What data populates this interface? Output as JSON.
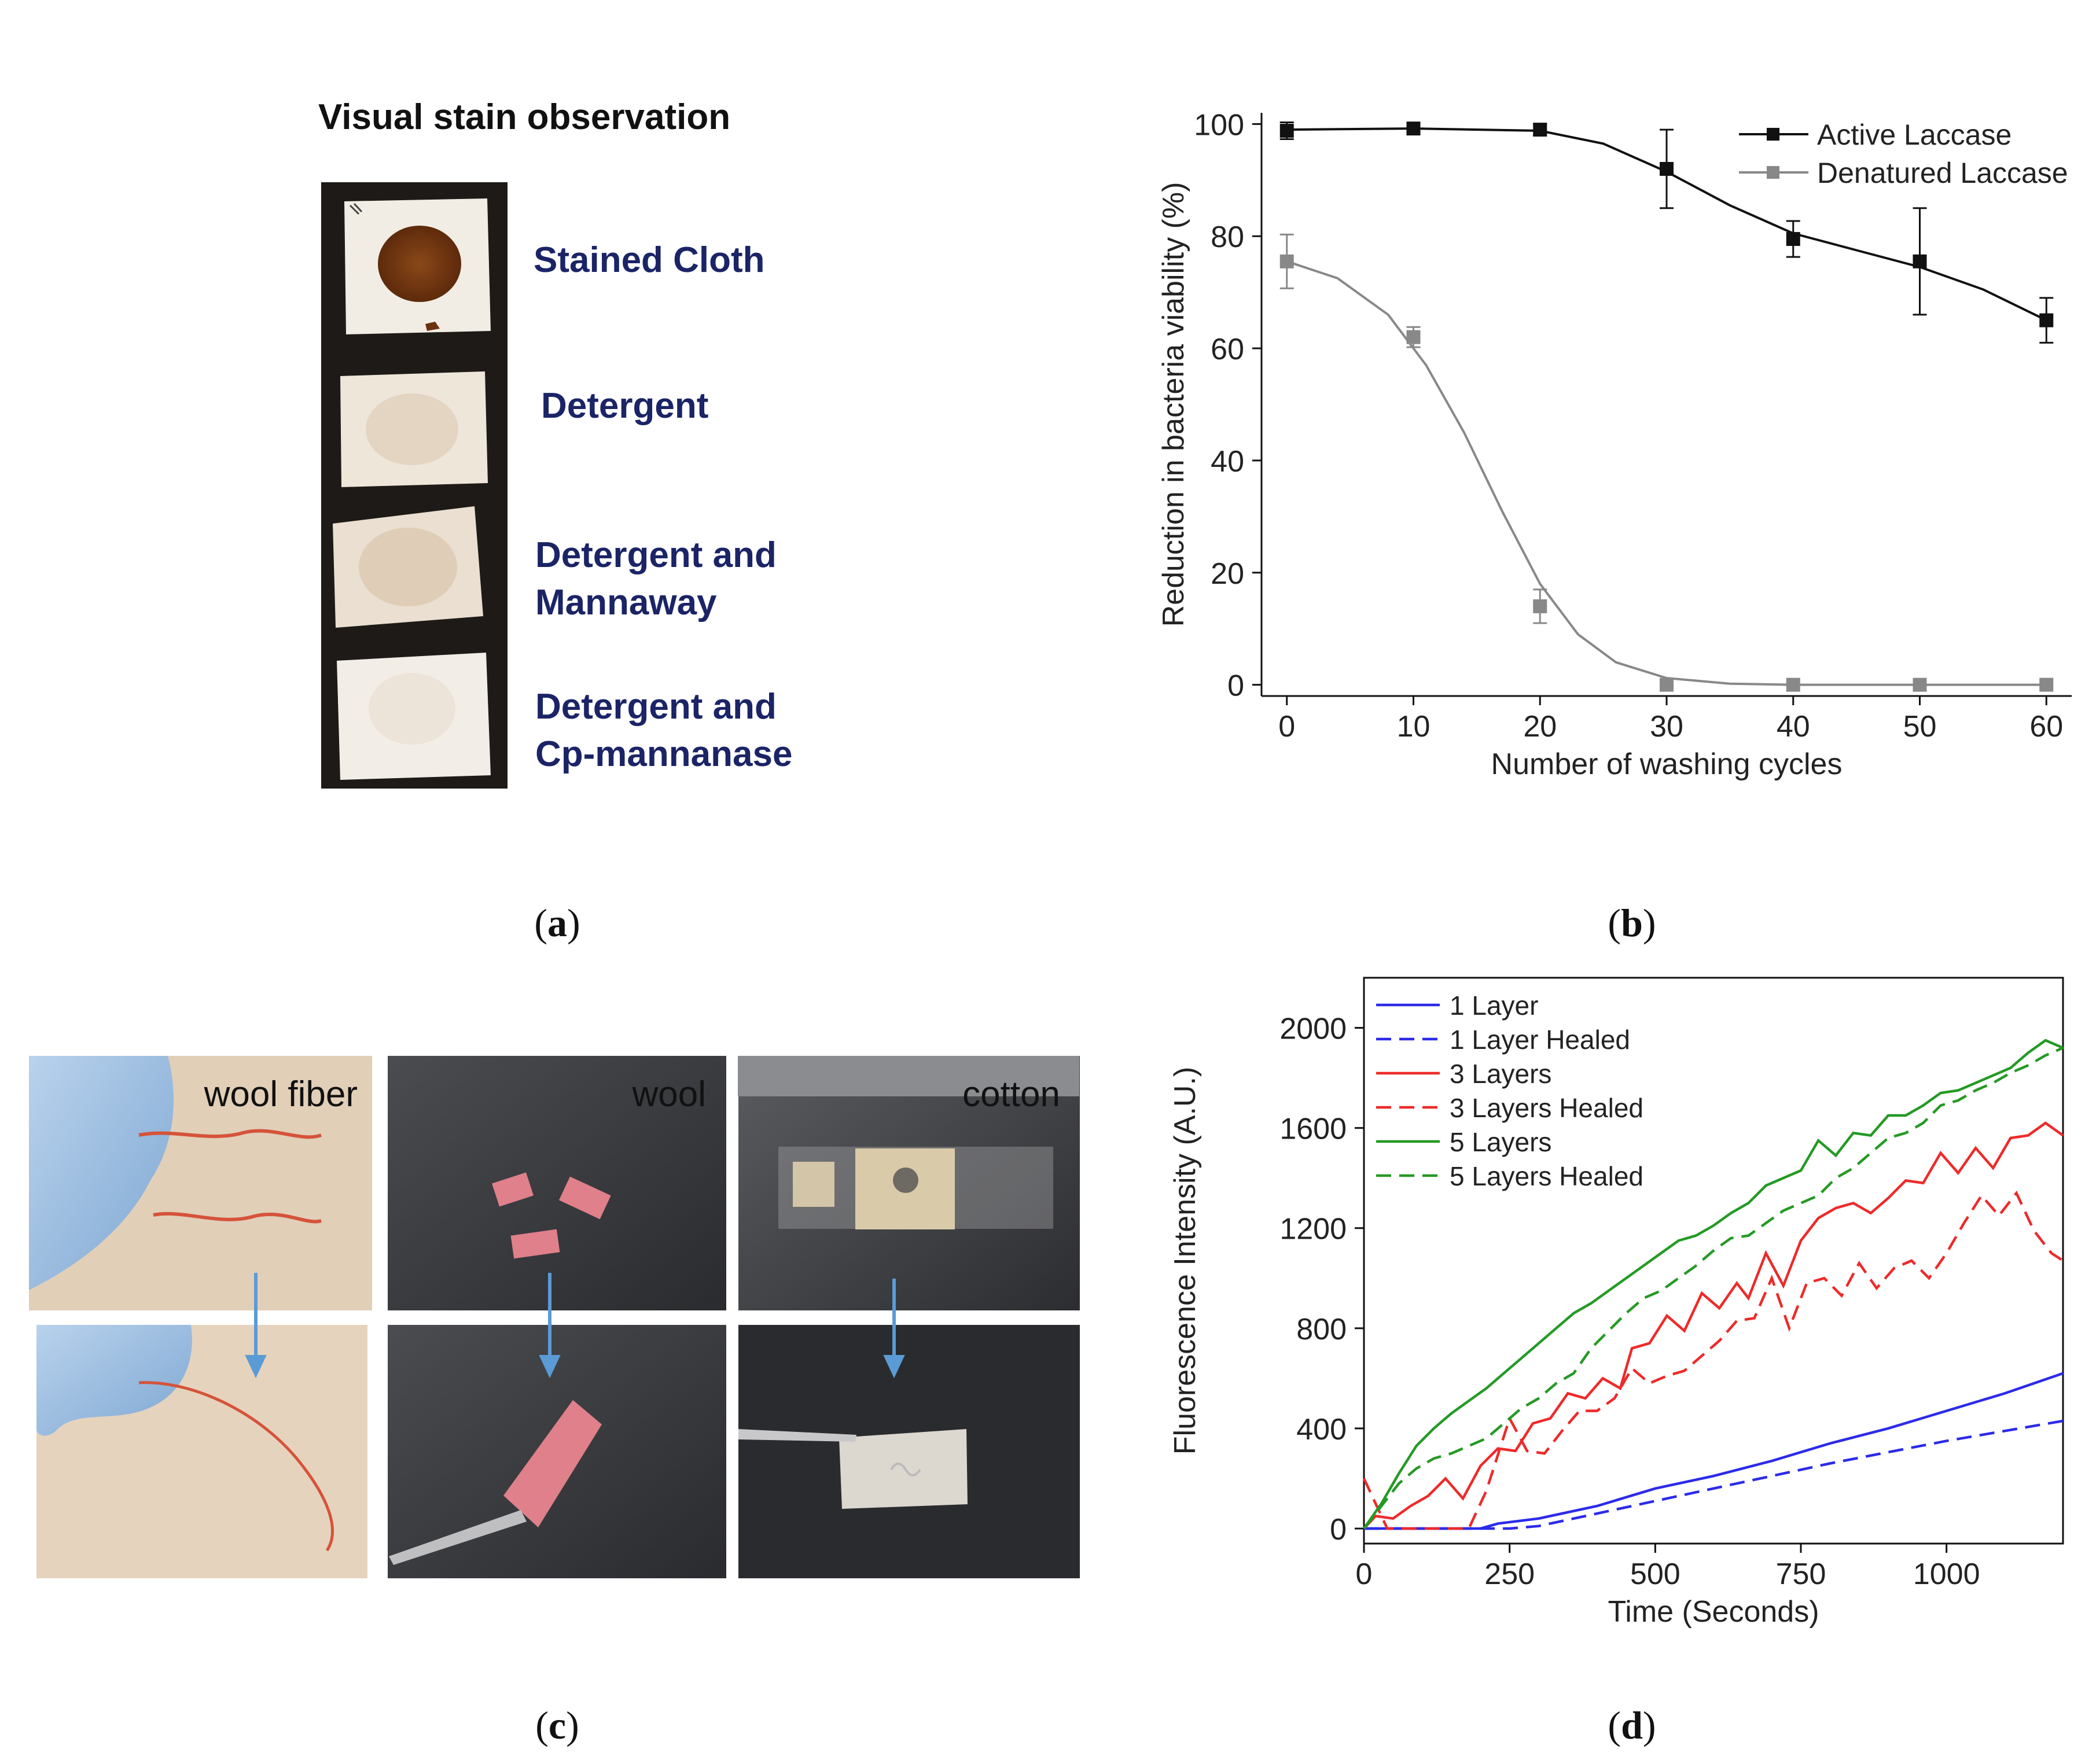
{
  "panels": {
    "a": {
      "label_open": "(",
      "label_letter": "a",
      "label_close": ")",
      "title": "Visual stain observation",
      "samples": [
        {
          "lines": [
            "Stained Cloth"
          ]
        },
        {
          "lines": [
            "Detergent"
          ]
        },
        {
          "lines": [
            "Detergent and",
            "Mannaway"
          ]
        },
        {
          "lines": [
            "Detergent and",
            "Cp-mannanase"
          ]
        }
      ],
      "colors": {
        "text": "#1a2466",
        "stain": "#7a3a14",
        "cloth": "#f1ede4",
        "washed": "#e9dccb",
        "background": "#1d1a17"
      }
    },
    "b": {
      "label_open": "(",
      "label_letter": "b",
      "label_close": ")"
    },
    "c": {
      "label_open": "(",
      "label_letter": "c",
      "label_close": ")",
      "photos": [
        {
          "caption": "wool fiber"
        },
        {
          "caption": "wool"
        },
        {
          "caption": "cotton"
        }
      ],
      "colors": {
        "arrow": "#5b9bd5",
        "fiber": "#d5533a",
        "wool": "#e0808a"
      }
    },
    "d": {
      "label_open": "(",
      "label_letter": "d",
      "label_close": ")"
    }
  },
  "chart_data": [
    {
      "panel": "b",
      "type": "line",
      "title": "",
      "xlabel": "Number of washing cycles",
      "ylabel": "Reduction in bacteria viability (%)",
      "xlim": [
        -2,
        62
      ],
      "ylim": [
        -2,
        102
      ],
      "xticks": [
        0,
        10,
        20,
        30,
        40,
        50,
        60
      ],
      "yticks": [
        0,
        20,
        40,
        60,
        80,
        100
      ],
      "grid": false,
      "legend_position": "top-right",
      "series": [
        {
          "name": "Active Laccase",
          "color": "#111111",
          "marker": "square",
          "x": [
            0,
            10,
            20,
            30,
            40,
            50,
            60
          ],
          "y": [
            98.8,
            99.2,
            99.0,
            92.0,
            79.5,
            75.5,
            65.0
          ],
          "error": [
            1.5,
            0.8,
            1.0,
            7.0,
            3.2,
            9.5,
            4.0
          ],
          "fit": [
            [
              0,
              99
            ],
            [
              10,
              99.2
            ],
            [
              20,
              98.8
            ],
            [
              25,
              96.5
            ],
            [
              30,
              91.5
            ],
            [
              35,
              85.5
            ],
            [
              40,
              80.5
            ],
            [
              45,
              77.5
            ],
            [
              50,
              74.5
            ],
            [
              55,
              70.5
            ],
            [
              60,
              65
            ]
          ]
        },
        {
          "name": "Denatured Laccase",
          "color": "#888888",
          "marker": "square",
          "x": [
            0,
            10,
            20,
            30,
            40,
            50,
            60
          ],
          "y": [
            75.5,
            62.0,
            14.0,
            0.0,
            0.0,
            0.0,
            0.0
          ],
          "error": [
            4.8,
            1.8,
            3.0,
            0.0,
            0.0,
            0.0,
            0.0
          ],
          "fit": [
            [
              0,
              75.5
            ],
            [
              4,
              72.5
            ],
            [
              8,
              66
            ],
            [
              11,
              57
            ],
            [
              14,
              45
            ],
            [
              17,
              31
            ],
            [
              20,
              18
            ],
            [
              23,
              9
            ],
            [
              26,
              4
            ],
            [
              30,
              1.2
            ],
            [
              35,
              0.2
            ],
            [
              40,
              0
            ],
            [
              50,
              0
            ],
            [
              60,
              0
            ]
          ]
        }
      ]
    },
    {
      "panel": "d",
      "type": "line",
      "title": "",
      "xlabel": "Time (Seconds)",
      "ylabel": "Fluorescence Intensity (A.U.)",
      "xlim": [
        0,
        1200
      ],
      "ylim": [
        -60,
        2200
      ],
      "xticks": [
        0,
        250,
        500,
        750,
        1000
      ],
      "yticks": [
        0,
        400,
        800,
        1200,
        1600,
        2000
      ],
      "grid": false,
      "legend_position": "top-left",
      "series": [
        {
          "name": "1 Layer",
          "color": "#2b2bea",
          "dash": false,
          "points": [
            [
              0,
              0
            ],
            [
              100,
              0
            ],
            [
              200,
              0
            ],
            [
              230,
              20
            ],
            [
              300,
              40
            ],
            [
              400,
              90
            ],
            [
              500,
              160
            ],
            [
              600,
              210
            ],
            [
              700,
              270
            ],
            [
              800,
              340
            ],
            [
              900,
              400
            ],
            [
              1000,
              470
            ],
            [
              1100,
              540
            ],
            [
              1200,
              620
            ]
          ]
        },
        {
          "name": "1 Layer Healed",
          "color": "#2b2bea",
          "dash": true,
          "points": [
            [
              0,
              0
            ],
            [
              250,
              0
            ],
            [
              300,
              10
            ],
            [
              400,
              60
            ],
            [
              500,
              110
            ],
            [
              600,
              160
            ],
            [
              700,
              210
            ],
            [
              800,
              260
            ],
            [
              900,
              305
            ],
            [
              1000,
              350
            ],
            [
              1100,
              390
            ],
            [
              1200,
              430
            ]
          ]
        },
        {
          "name": "3 Layers",
          "color": "#ee2a2a",
          "dash": false,
          "points": [
            [
              0,
              0
            ],
            [
              20,
              50
            ],
            [
              50,
              40
            ],
            [
              80,
              90
            ],
            [
              110,
              130
            ],
            [
              140,
              200
            ],
            [
              170,
              120
            ],
            [
              200,
              250
            ],
            [
              230,
              320
            ],
            [
              260,
              310
            ],
            [
              290,
              420
            ],
            [
              320,
              440
            ],
            [
              350,
              540
            ],
            [
              380,
              520
            ],
            [
              410,
              600
            ],
            [
              440,
              560
            ],
            [
              460,
              720
            ],
            [
              490,
              740
            ],
            [
              520,
              850
            ],
            [
              550,
              790
            ],
            [
              580,
              940
            ],
            [
              610,
              880
            ],
            [
              640,
              980
            ],
            [
              660,
              920
            ],
            [
              690,
              1100
            ],
            [
              720,
              970
            ],
            [
              750,
              1150
            ],
            [
              780,
              1240
            ],
            [
              810,
              1280
            ],
            [
              840,
              1300
            ],
            [
              870,
              1260
            ],
            [
              900,
              1320
            ],
            [
              930,
              1390
            ],
            [
              960,
              1380
            ],
            [
              990,
              1500
            ],
            [
              1020,
              1420
            ],
            [
              1050,
              1520
            ],
            [
              1080,
              1440
            ],
            [
              1110,
              1560
            ],
            [
              1140,
              1570
            ],
            [
              1170,
              1620
            ],
            [
              1200,
              1570
            ]
          ]
        },
        {
          "name": "3 Layers Healed",
          "color": "#ee2a2a",
          "dash": true,
          "points": [
            [
              0,
              200
            ],
            [
              20,
              100
            ],
            [
              40,
              0
            ],
            [
              100,
              0
            ],
            [
              180,
              0
            ],
            [
              210,
              150
            ],
            [
              250,
              440
            ],
            [
              280,
              310
            ],
            [
              310,
              300
            ],
            [
              340,
              390
            ],
            [
              370,
              470
            ],
            [
              400,
              470
            ],
            [
              430,
              520
            ],
            [
              460,
              640
            ],
            [
              490,
              580
            ],
            [
              520,
              610
            ],
            [
              550,
              630
            ],
            [
              580,
              690
            ],
            [
              610,
              750
            ],
            [
              640,
              830
            ],
            [
              670,
              840
            ],
            [
              700,
              1000
            ],
            [
              730,
              800
            ],
            [
              760,
              980
            ],
            [
              790,
              1000
            ],
            [
              820,
              930
            ],
            [
              850,
              1060
            ],
            [
              880,
              960
            ],
            [
              910,
              1040
            ],
            [
              940,
              1070
            ],
            [
              970,
              1000
            ],
            [
              1000,
              1100
            ],
            [
              1030,
              1220
            ],
            [
              1060,
              1330
            ],
            [
              1090,
              1250
            ],
            [
              1120,
              1340
            ],
            [
              1150,
              1190
            ],
            [
              1180,
              1100
            ],
            [
              1200,
              1070
            ]
          ]
        },
        {
          "name": "5 Layers",
          "color": "#249a24",
          "dash": false,
          "points": [
            [
              0,
              0
            ],
            [
              30,
              100
            ],
            [
              60,
              220
            ],
            [
              90,
              330
            ],
            [
              120,
              400
            ],
            [
              150,
              460
            ],
            [
              180,
              510
            ],
            [
              210,
              560
            ],
            [
              240,
              620
            ],
            [
              270,
              680
            ],
            [
              300,
              740
            ],
            [
              330,
              800
            ],
            [
              360,
              860
            ],
            [
              390,
              900
            ],
            [
              420,
              950
            ],
            [
              450,
              1000
            ],
            [
              480,
              1050
            ],
            [
              510,
              1100
            ],
            [
              540,
              1150
            ],
            [
              570,
              1170
            ],
            [
              600,
              1210
            ],
            [
              630,
              1260
            ],
            [
              660,
              1300
            ],
            [
              690,
              1370
            ],
            [
              720,
              1400
            ],
            [
              750,
              1430
            ],
            [
              780,
              1550
            ],
            [
              810,
              1490
            ],
            [
              840,
              1580
            ],
            [
              870,
              1570
            ],
            [
              900,
              1650
            ],
            [
              930,
              1650
            ],
            [
              960,
              1690
            ],
            [
              990,
              1740
            ],
            [
              1020,
              1750
            ],
            [
              1050,
              1780
            ],
            [
              1080,
              1810
            ],
            [
              1110,
              1840
            ],
            [
              1140,
              1900
            ],
            [
              1170,
              1950
            ],
            [
              1200,
              1920
            ]
          ]
        },
        {
          "name": "5 Layers Healed",
          "color": "#249a24",
          "dash": true,
          "points": [
            [
              0,
              0
            ],
            [
              30,
              90
            ],
            [
              60,
              180
            ],
            [
              90,
              240
            ],
            [
              120,
              280
            ],
            [
              150,
              300
            ],
            [
              180,
              330
            ],
            [
              210,
              360
            ],
            [
              240,
              420
            ],
            [
              270,
              480
            ],
            [
              300,
              520
            ],
            [
              330,
              580
            ],
            [
              360,
              620
            ],
            [
              390,
              720
            ],
            [
              420,
              790
            ],
            [
              450,
              860
            ],
            [
              480,
              920
            ],
            [
              510,
              950
            ],
            [
              540,
              1000
            ],
            [
              570,
              1050
            ],
            [
              600,
              1110
            ],
            [
              630,
              1160
            ],
            [
              660,
              1170
            ],
            [
              690,
              1220
            ],
            [
              720,
              1270
            ],
            [
              750,
              1300
            ],
            [
              780,
              1330
            ],
            [
              810,
              1400
            ],
            [
              840,
              1440
            ],
            [
              870,
              1500
            ],
            [
              900,
              1560
            ],
            [
              930,
              1580
            ],
            [
              960,
              1620
            ],
            [
              990,
              1690
            ],
            [
              1020,
              1710
            ],
            [
              1050,
              1750
            ],
            [
              1080,
              1780
            ],
            [
              1110,
              1820
            ],
            [
              1140,
              1850
            ],
            [
              1170,
              1890
            ],
            [
              1200,
              1920
            ]
          ]
        }
      ]
    }
  ]
}
